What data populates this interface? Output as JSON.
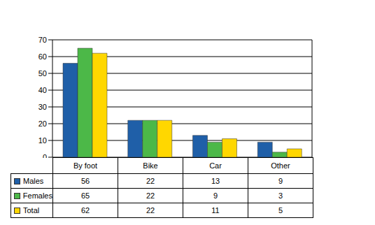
{
  "chart_data": {
    "type": "bar",
    "categories": [
      "By foot",
      "Bike",
      "Car",
      "Other"
    ],
    "series": [
      {
        "name": "Males",
        "color": "#1f5fa8",
        "values": [
          56,
          22,
          13,
          9
        ]
      },
      {
        "name": "Females",
        "color": "#4cb848",
        "values": [
          65,
          22,
          9,
          3
        ]
      },
      {
        "name": "Total",
        "color": "#ffd700",
        "values": [
          62,
          22,
          11,
          5
        ]
      }
    ],
    "ylim": [
      0,
      70
    ],
    "yticks": [
      0,
      10,
      20,
      30,
      40,
      50,
      60,
      70
    ],
    "grid": true
  }
}
